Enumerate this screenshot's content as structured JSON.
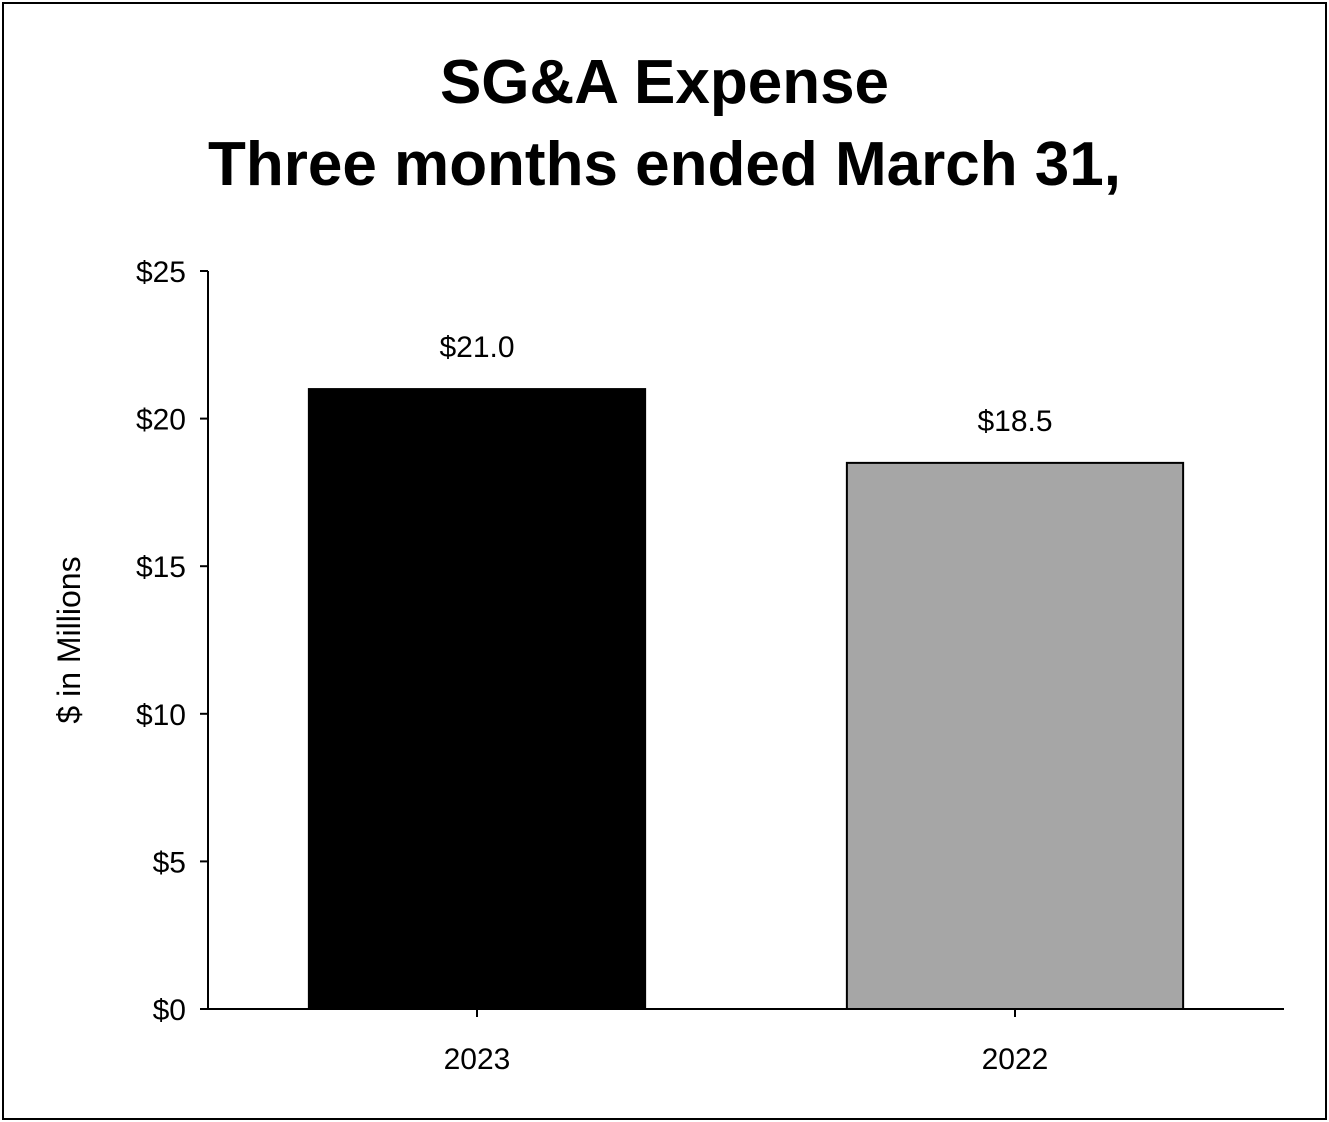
{
  "chart_data": {
    "type": "bar",
    "title_line1": "SG&A Expense",
    "title_line2": "Three months ended March 31,",
    "xlabel": "",
    "ylabel": "$ in Millions",
    "categories": [
      "2023",
      "2022"
    ],
    "values": [
      21.0,
      18.5
    ],
    "data_labels": [
      "$21.0",
      "$18.5"
    ],
    "bar_colors": [
      "#000000",
      "#a6a6a6"
    ],
    "ylim": [
      0,
      25
    ],
    "y_ticks": [
      0,
      5,
      10,
      15,
      20,
      25
    ],
    "y_tick_labels": [
      "$0",
      "$5",
      "$10",
      "$15",
      "$20",
      "$25"
    ],
    "grid": false,
    "legend": "none"
  }
}
